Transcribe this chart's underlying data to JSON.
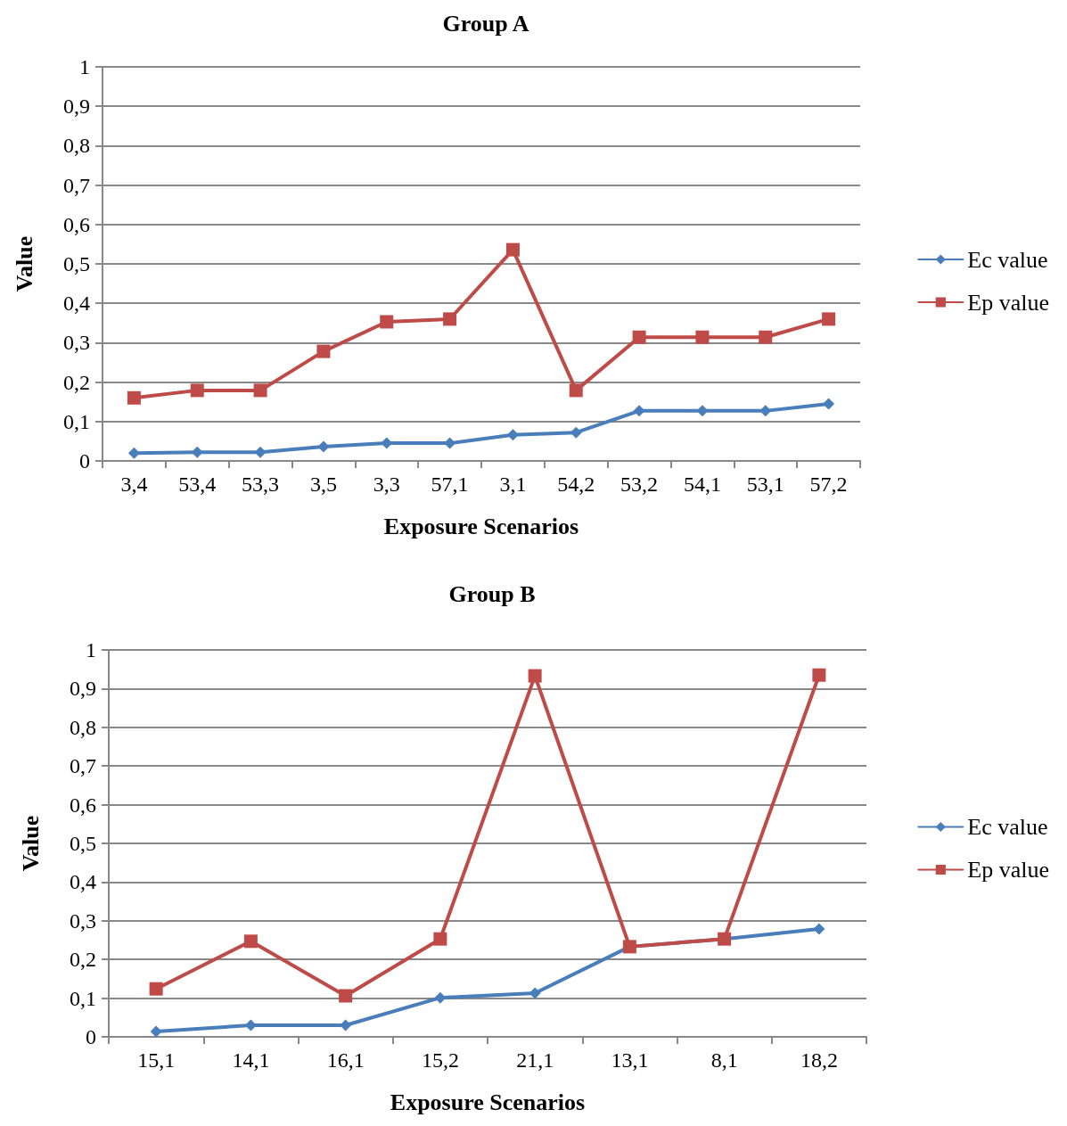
{
  "chart_data": [
    {
      "type": "line",
      "title": "Group A",
      "xlabel": "Exposure Scenarios",
      "ylabel": "Value",
      "categories": [
        "3,4",
        "53,4",
        "53,3",
        "3,5",
        "3,3",
        "57,1",
        "3,1",
        "54,2",
        "53,2",
        "54,1",
        "53,1",
        "57,2"
      ],
      "series": [
        {
          "name": "Ec value",
          "color": "#4a7ebb",
          "marker": "diamond",
          "values": [
            0.02,
            0.022,
            0.022,
            0.036,
            0.045,
            0.045,
            0.066,
            0.072,
            0.127,
            0.127,
            0.127,
            0.145
          ]
        },
        {
          "name": "Ep value",
          "color": "#be4b48",
          "marker": "square",
          "values": [
            0.16,
            0.179,
            0.179,
            0.278,
            0.353,
            0.36,
            0.536,
            0.179,
            0.314,
            0.314,
            0.314,
            0.36
          ]
        }
      ],
      "ylim": [
        0,
        1
      ],
      "yticks": [
        {
          "value": 0,
          "label": "0"
        },
        {
          "value": 0.1,
          "label": "0,1"
        },
        {
          "value": 0.2,
          "label": "0,2"
        },
        {
          "value": 0.3,
          "label": "0,3"
        },
        {
          "value": 0.4,
          "label": "0,4"
        },
        {
          "value": 0.5,
          "label": "0,5"
        },
        {
          "value": 0.6,
          "label": "0,6"
        },
        {
          "value": 0.7,
          "label": "0,7"
        },
        {
          "value": 0.8,
          "label": "0,8"
        },
        {
          "value": 0.9,
          "label": "0,9"
        },
        {
          "value": 1,
          "label": "1"
        }
      ],
      "grid": "y",
      "legend": "right",
      "line_style": "solid"
    },
    {
      "type": "line",
      "title": "Group B",
      "xlabel": "Exposure Scenarios",
      "ylabel": "Value",
      "categories": [
        "15,1",
        "14,1",
        "16,1",
        "15,2",
        "21,1",
        "13,1",
        "8,1",
        "18,2"
      ],
      "series": [
        {
          "name": "Ec value",
          "color": "#4a7ebb",
          "marker": "diamond",
          "values": [
            0.014,
            0.03,
            0.03,
            0.101,
            0.113,
            0.233,
            0.253,
            0.279
          ]
        },
        {
          "name": "Ep value",
          "color": "#be4b48",
          "marker": "square",
          "values": [
            0.124,
            0.247,
            0.106,
            0.253,
            0.933,
            0.233,
            0.253,
            0.935
          ]
        }
      ],
      "ylim": [
        0,
        1
      ],
      "yticks": [
        {
          "value": 0,
          "label": "0"
        },
        {
          "value": 0.1,
          "label": "0,1"
        },
        {
          "value": 0.2,
          "label": "0,2"
        },
        {
          "value": 0.3,
          "label": "0,3"
        },
        {
          "value": 0.4,
          "label": "0,4"
        },
        {
          "value": 0.5,
          "label": "0,5"
        },
        {
          "value": 0.6,
          "label": "0,6"
        },
        {
          "value": 0.7,
          "label": "0,7"
        },
        {
          "value": 0.8,
          "label": "0,8"
        },
        {
          "value": 0.9,
          "label": "0,9"
        },
        {
          "value": 1,
          "label": "1"
        }
      ],
      "grid": "y",
      "legend": "right",
      "line_style": "solid"
    }
  ]
}
